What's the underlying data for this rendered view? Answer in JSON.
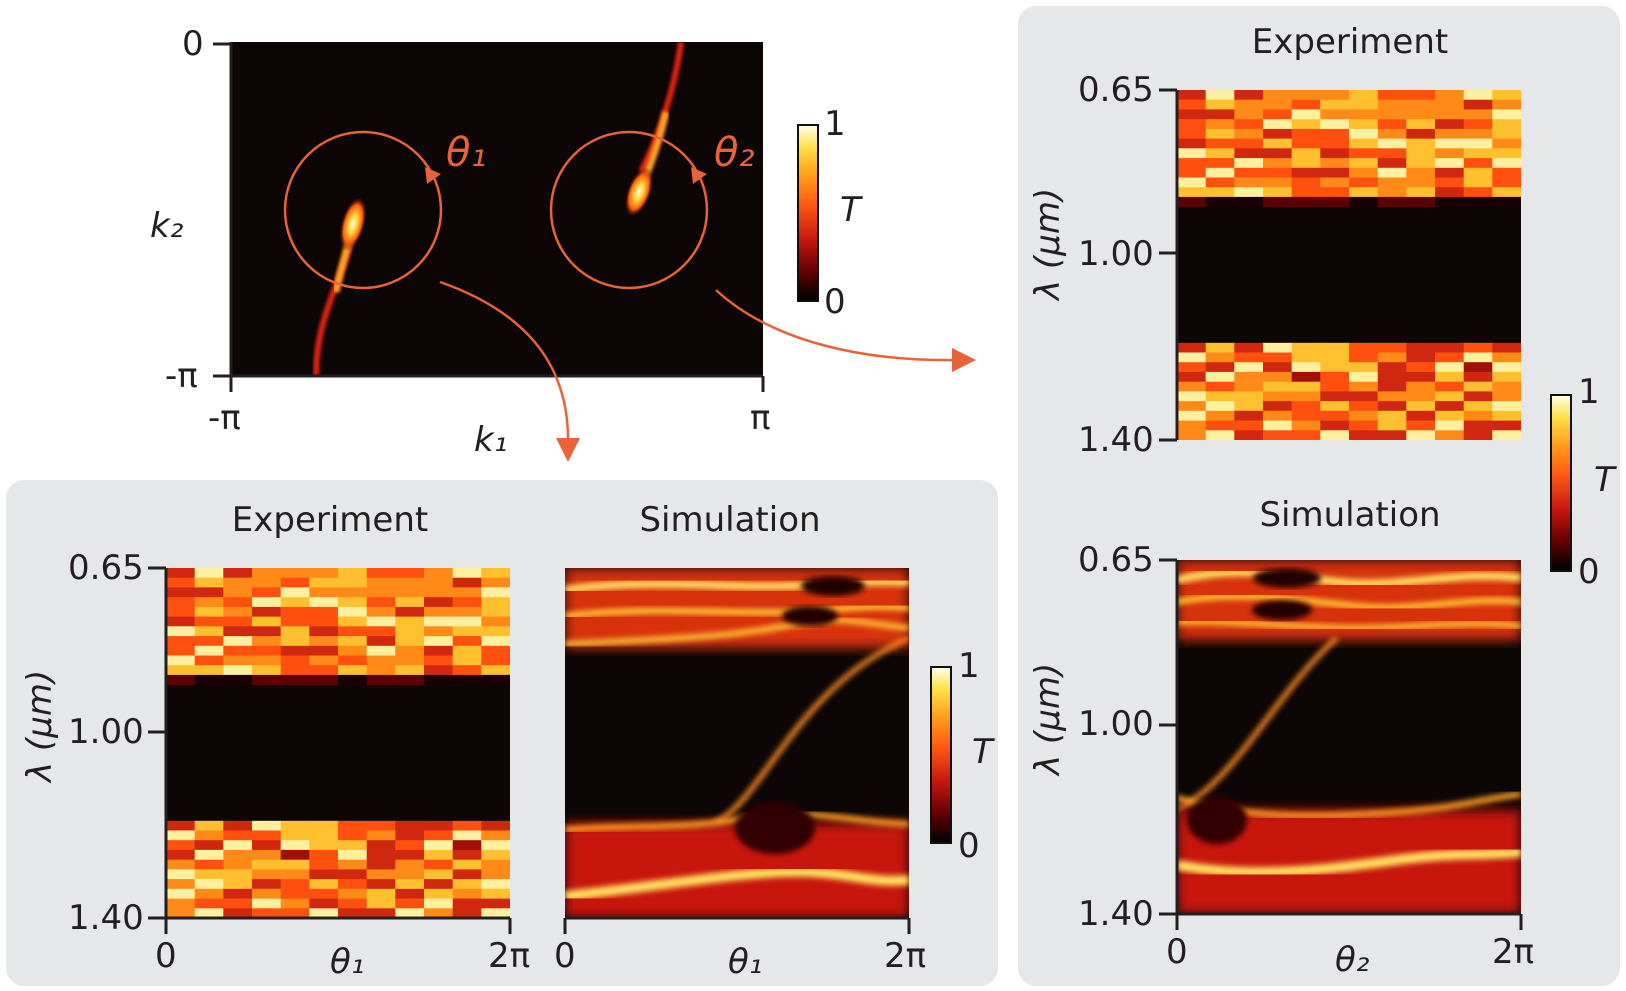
{
  "figure": {
    "top_map": {
      "x_axis_label": "k₁",
      "y_axis_label": "k₂",
      "x_ticks": [
        "-π",
        "π"
      ],
      "y_ticks": [
        "0",
        "-π"
      ],
      "loop_labels": [
        "θ₁",
        "θ₂"
      ],
      "colorbar": {
        "label": "T",
        "max": "1",
        "min": "0"
      }
    },
    "right_panel": {
      "experiment_title": "Experiment",
      "simulation_title": "Simulation",
      "y_axis_label": "λ (μm)",
      "y_ticks_exp": [
        "0.65",
        "1.00",
        "1.40"
      ],
      "y_ticks_sim": [
        "0.65",
        "1.00",
        "1.40"
      ],
      "x_ticks": [
        "0",
        "2π"
      ],
      "x_axis_label": "θ₂",
      "colorbar": {
        "label": "T",
        "max": "1",
        "min": "0"
      }
    },
    "bottom_panel": {
      "experiment_title": "Experiment",
      "simulation_title": "Simulation",
      "y_axis_label": "λ (μm)",
      "y_ticks": [
        "0.65",
        "1.00",
        "1.40"
      ],
      "exp_x_ticks": [
        "0",
        "2π"
      ],
      "sim_x_ticks": [
        "0",
        "2π"
      ],
      "x_axis_label_exp": "θ₁",
      "x_axis_label_sim": "θ₁",
      "colorbar": {
        "label": "T",
        "max": "1",
        "min": "0"
      }
    },
    "accent_color": "#e8623a"
  },
  "chart_data": [
    {
      "type": "heatmap",
      "xlabel": "k₁",
      "ylabel": "k₂",
      "xlim": [
        "-π",
        "π"
      ],
      "ylim": [
        "-π",
        "0"
      ],
      "colorbar": "T",
      "clim": [
        0,
        1
      ]
    },
    {
      "type": "heatmap",
      "title": "Experiment",
      "xlabel": "θ₂",
      "ylabel": "λ (μm)",
      "xlim": [
        "0",
        "2π"
      ],
      "ylim": [
        0.65,
        1.4
      ],
      "clim": [
        0,
        1
      ]
    },
    {
      "type": "heatmap",
      "title": "Simulation",
      "xlabel": "θ₂",
      "ylabel": "λ (μm)",
      "xlim": [
        "0",
        "2π"
      ],
      "ylim": [
        0.65,
        1.4
      ],
      "clim": [
        0,
        1
      ]
    },
    {
      "type": "heatmap",
      "title": "Experiment",
      "xlabel": "θ₁",
      "ylabel": "λ (μm)",
      "xlim": [
        "0",
        "2π"
      ],
      "ylim": [
        0.65,
        1.4
      ],
      "clim": [
        0,
        1
      ]
    },
    {
      "type": "heatmap",
      "title": "Simulation",
      "xlabel": "θ₁",
      "ylabel": "λ (μm)",
      "xlim": [
        "0",
        "2π"
      ],
      "ylim": [
        0.65,
        1.4
      ],
      "clim": [
        0,
        1
      ]
    }
  ]
}
